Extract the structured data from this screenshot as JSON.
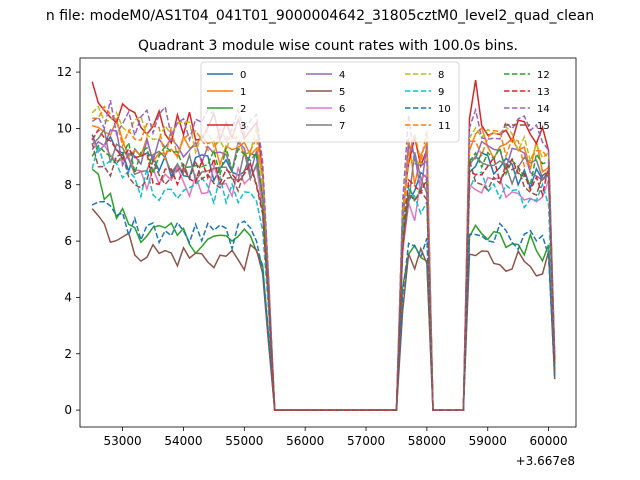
{
  "chart_data": {
    "type": "line",
    "suptitle": "n file: modeM0/AS1T04_041T01_9000004642_31805cztM0_level2_quad_clean",
    "title": "Quadrant 3 module wise count rates with 100.0s bins.",
    "xlabel": "",
    "ylabel": "",
    "x_offset_label": "+3.667e8",
    "xlim": [
      52300,
      60450
    ],
    "ylim": [
      -0.6,
      12.5
    ],
    "xticks": [
      53000,
      54000,
      55000,
      56000,
      57000,
      58000,
      59000,
      60000
    ],
    "yticks": [
      0,
      2,
      4,
      6,
      8,
      10,
      12
    ],
    "legend": {
      "placement": "top-center",
      "columns": 4
    },
    "segments": [
      {
        "x_start": 52500,
        "x_end": 55200
      },
      {
        "x_start": 57700,
        "x_end": 58000
      },
      {
        "x_start": 58700,
        "x_end": 60000
      }
    ],
    "zero_gaps": [
      [
        55500,
        57500
      ],
      [
        58100,
        58600
      ]
    ],
    "end_x": 60100,
    "series": [
      {
        "name": "0",
        "color": "#1f77b4",
        "style": "solid",
        "start": 9.6,
        "level": 8.6,
        "drop_to": 1.6
      },
      {
        "name": "1",
        "color": "#ff7f0e",
        "style": "solid",
        "start": 10.4,
        "level": 9.3,
        "drop_to": 1.5
      },
      {
        "name": "2",
        "color": "#2ca02c",
        "style": "solid",
        "start": 8.6,
        "level": 6.0,
        "drop_to": 1.3
      },
      {
        "name": "3",
        "color": "#d62728",
        "style": "solid",
        "start": 11.8,
        "level": 9.9,
        "drop_to": 1.9
      },
      {
        "name": "4",
        "color": "#9467bd",
        "style": "solid",
        "start": 9.8,
        "level": 9.0,
        "drop_to": 1.7
      },
      {
        "name": "5",
        "color": "#8c564b",
        "style": "solid",
        "start": 7.3,
        "level": 5.4,
        "drop_to": 1.1
      },
      {
        "name": "6",
        "color": "#e377c2",
        "style": "solid",
        "start": 9.3,
        "level": 8.1,
        "drop_to": 1.6
      },
      {
        "name": "7",
        "color": "#7f7f7f",
        "style": "solid",
        "start": 9.9,
        "level": 8.7,
        "drop_to": 1.4
      },
      {
        "name": "8",
        "color": "#bcbd22",
        "style": "dashed",
        "start": 11.0,
        "level": 9.6,
        "drop_to": 1.8
      },
      {
        "name": "9",
        "color": "#17becf",
        "style": "dashed",
        "start": 9.1,
        "level": 7.9,
        "drop_to": 1.5
      },
      {
        "name": "10",
        "color": "#1f77b4",
        "style": "dashed",
        "start": 7.6,
        "level": 6.2,
        "drop_to": 1.2
      },
      {
        "name": "11",
        "color": "#ff7f0e",
        "style": "dashed",
        "start": 10.6,
        "level": 9.4,
        "drop_to": 1.7
      },
      {
        "name": "12",
        "color": "#2ca02c",
        "style": "dashed",
        "start": 9.5,
        "level": 8.8,
        "drop_to": 1.6
      },
      {
        "name": "13",
        "color": "#d62728",
        "style": "dashed",
        "start": 9.7,
        "level": 8.5,
        "drop_to": 1.8
      },
      {
        "name": "14",
        "color": "#9467bd",
        "style": "dashed",
        "start": 10.8,
        "level": 10.2,
        "drop_to": 1.9
      },
      {
        "name": "15",
        "color": "#8c564b",
        "style": "dashed",
        "start": 9.2,
        "level": 8.3,
        "drop_to": 1.4
      }
    ]
  }
}
